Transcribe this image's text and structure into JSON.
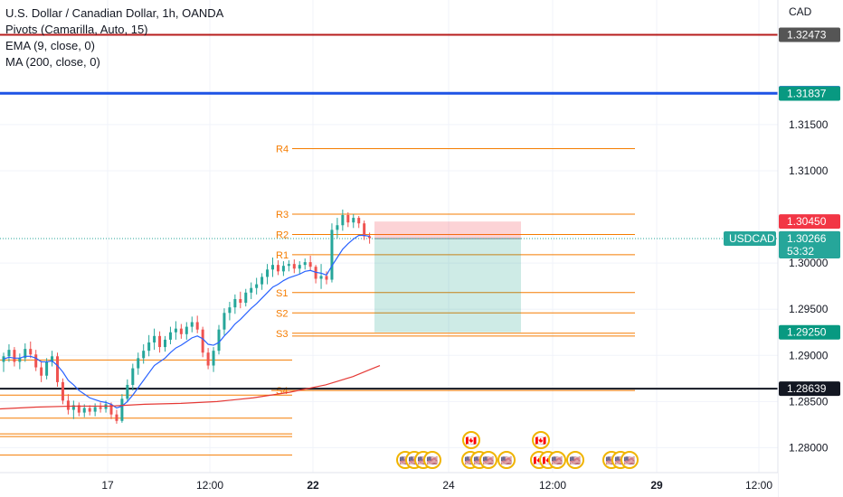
{
  "legend": {
    "title": "U.S. Dollar / Canadian Dollar, 1h, OANDA",
    "line2": "Pivots (Camarilla, Auto, 15)",
    "line3": "EMA (9, close, 0)",
    "line4": "MA (200, close, 0)"
  },
  "chart_data": {
    "type": "candlestick",
    "currency_label": "CAD",
    "symbol_tag": "USDCAD",
    "countdown": "53:32",
    "y_ticks": [
      1.315,
      1.31,
      1.3,
      1.295,
      1.29,
      1.285,
      1.28
    ],
    "y_tick_labels": [
      "1.31500",
      "1.31000",
      "1.30000",
      "1.29500",
      "1.29000",
      "1.28500",
      "1.28000"
    ],
    "y_range": [
      1.2773,
      1.3285
    ],
    "x_ticks": [
      {
        "label": "17",
        "bold": false
      },
      {
        "label": "12:00",
        "bold": false
      },
      {
        "label": "22",
        "bold": true
      },
      {
        "label": "24",
        "bold": false
      },
      {
        "label": "12:00",
        "bold": false
      },
      {
        "label": "29",
        "bold": true
      },
      {
        "label": "12:00",
        "bold": false
      }
    ],
    "current_price": 1.30266,
    "price_badges": [
      {
        "price": 1.32473,
        "label": "1.32473",
        "color": "#555555"
      },
      {
        "price": 1.31841,
        "label": "1.31841",
        "color": "#1e53e5"
      },
      {
        "price": 1.31837,
        "label": "1.31837",
        "color": "#089981"
      },
      {
        "price": 1.3045,
        "label": "1.30450",
        "color": "#f23645"
      },
      {
        "price": 1.30267,
        "label": "1.30267",
        "color": "#555555"
      },
      {
        "price": 1.2925,
        "label": "1.29250",
        "color": "#089981"
      },
      {
        "price": 1.28639,
        "label": "1.28639",
        "color": "#131722"
      }
    ],
    "horizontal_lines": [
      {
        "price": 1.32473,
        "color": "#b71c1c",
        "width": 2
      },
      {
        "price": 1.31839,
        "color": "#1e53e5",
        "width": 3
      },
      {
        "price": 1.28639,
        "color": "#131722",
        "width": 2
      }
    ],
    "pivots": [
      {
        "label": "R4",
        "price": 1.3124
      },
      {
        "label": "R3",
        "price": 1.3053
      },
      {
        "label": "R2",
        "price": 1.3031
      },
      {
        "label": "R1",
        "price": 1.3009
      },
      {
        "label": "S1",
        "price": 1.2968
      },
      {
        "label": "S2",
        "price": 1.2946
      },
      {
        "label": "S3",
        "price": 1.2924
      },
      {
        "label": "S4",
        "price": 1.2862
      }
    ],
    "prev_pivots": [
      1.2895,
      1.2857,
      1.2832,
      1.2815,
      1.2812,
      1.2792
    ],
    "trade": {
      "entry": 1.30266,
      "stop": 1.3045,
      "target": 1.2925
    },
    "candles": [
      [
        1.2893,
        1.2903,
        1.2882,
        1.2899
      ],
      [
        1.2899,
        1.2912,
        1.2893,
        1.2906
      ],
      [
        1.2906,
        1.2909,
        1.2888,
        1.2893
      ],
      [
        1.2893,
        1.2902,
        1.2885,
        1.2897
      ],
      [
        1.2897,
        1.2913,
        1.2893,
        1.2907
      ],
      [
        1.2907,
        1.2915,
        1.2897,
        1.2901
      ],
      [
        1.2901,
        1.2906,
        1.2883,
        1.2887
      ],
      [
        1.2887,
        1.2894,
        1.2871,
        1.2878
      ],
      [
        1.2878,
        1.2897,
        1.2874,
        1.2893
      ],
      [
        1.2893,
        1.2905,
        1.2888,
        1.2899
      ],
      [
        1.2899,
        1.2903,
        1.2866,
        1.2871
      ],
      [
        1.2871,
        1.2875,
        1.2847,
        1.2851
      ],
      [
        1.2851,
        1.2858,
        1.2836,
        1.2841
      ],
      [
        1.2841,
        1.2851,
        1.2831,
        1.2846
      ],
      [
        1.2846,
        1.2849,
        1.2834,
        1.2838
      ],
      [
        1.2838,
        1.2847,
        1.2833,
        1.2843
      ],
      [
        1.2843,
        1.2846,
        1.2835,
        1.2839
      ],
      [
        1.2839,
        1.2848,
        1.2834,
        1.2844
      ],
      [
        1.2844,
        1.2849,
        1.2838,
        1.2842
      ],
      [
        1.2842,
        1.2851,
        1.2838,
        1.2847
      ],
      [
        1.2847,
        1.2849,
        1.2831,
        1.2836
      ],
      [
        1.2836,
        1.2841,
        1.2826,
        1.2829
      ],
      [
        1.2829,
        1.2858,
        1.2827,
        1.2853
      ],
      [
        1.2853,
        1.2874,
        1.2849,
        1.2868
      ],
      [
        1.2868,
        1.2891,
        1.2862,
        1.2886
      ],
      [
        1.2886,
        1.2903,
        1.2879,
        1.2897
      ],
      [
        1.2897,
        1.2912,
        1.2891,
        1.2905
      ],
      [
        1.2905,
        1.2922,
        1.2899,
        1.2914
      ],
      [
        1.2914,
        1.2929,
        1.2906,
        1.2921
      ],
      [
        1.2921,
        1.2926,
        1.2903,
        1.2909
      ],
      [
        1.2909,
        1.2921,
        1.2904,
        1.2917
      ],
      [
        1.2917,
        1.2931,
        1.2912,
        1.2925
      ],
      [
        1.2925,
        1.2937,
        1.2917,
        1.2929
      ],
      [
        1.2929,
        1.2934,
        1.2918,
        1.2923
      ],
      [
        1.2923,
        1.2936,
        1.2917,
        1.2931
      ],
      [
        1.2931,
        1.2942,
        1.2925,
        1.2936
      ],
      [
        1.2936,
        1.2943,
        1.2924,
        1.2928
      ],
      [
        1.2928,
        1.2931,
        1.2898,
        1.2903
      ],
      [
        1.2903,
        1.2908,
        1.2885,
        1.2889
      ],
      [
        1.2889,
        1.2909,
        1.2882,
        1.2905
      ],
      [
        1.2905,
        1.2933,
        1.2901,
        1.2928
      ],
      [
        1.2928,
        1.2951,
        1.2922,
        1.2946
      ],
      [
        1.2946,
        1.2958,
        1.2938,
        1.2952
      ],
      [
        1.2952,
        1.2966,
        1.2945,
        1.2961
      ],
      [
        1.2961,
        1.2969,
        1.2951,
        1.2957
      ],
      [
        1.2957,
        1.2972,
        1.2953,
        1.2968
      ],
      [
        1.2968,
        1.2979,
        1.2961,
        1.2973
      ],
      [
        1.2973,
        1.2984,
        1.2966,
        1.2977
      ],
      [
        1.2977,
        1.2989,
        1.2971,
        1.2985
      ],
      [
        1.2985,
        1.2999,
        1.2977,
        1.2993
      ],
      [
        1.2993,
        1.3006,
        1.2985,
        1.2998
      ],
      [
        1.2998,
        1.3003,
        1.2987,
        1.2991
      ],
      [
        1.2991,
        1.3002,
        1.2986,
        1.2997
      ],
      [
        1.2997,
        1.3003,
        1.2991,
        1.2999
      ],
      [
        1.2999,
        1.3004,
        1.2989,
        1.2994
      ],
      [
        1.2994,
        1.3002,
        1.2988,
        1.2998
      ],
      [
        1.2998,
        1.3005,
        1.2993,
        1.3001
      ],
      [
        1.3001,
        1.3008,
        1.2992,
        1.2996
      ],
      [
        1.2996,
        1.2998,
        1.2978,
        1.2983
      ],
      [
        1.2983,
        1.2999,
        1.2972,
        1.2986
      ],
      [
        1.2986,
        1.2991,
        1.2977,
        1.2982
      ],
      [
        1.2982,
        1.3043,
        1.2979,
        1.3036
      ],
      [
        1.3036,
        1.3049,
        1.3027,
        1.3041
      ],
      [
        1.3041,
        1.3058,
        1.3035,
        1.3052
      ],
      [
        1.3052,
        1.3055,
        1.3039,
        1.3044
      ],
      [
        1.3044,
        1.3053,
        1.3038,
        1.3049
      ],
      [
        1.3049,
        1.3051,
        1.3038,
        1.3043
      ],
      [
        1.3043,
        1.3046,
        1.3025,
        1.3029
      ],
      [
        1.3029,
        1.3033,
        1.3021,
        1.3027
      ]
    ],
    "ema": [
      1.2896,
      1.2898,
      1.2897,
      1.2897,
      1.2899,
      1.2899,
      1.2897,
      1.2893,
      1.2893,
      1.2894,
      1.2889,
      1.2882,
      1.2873,
      1.2868,
      1.2862,
      1.2858,
      1.2854,
      1.2852,
      1.285,
      1.2849,
      1.2847,
      1.2843,
      1.2845,
      1.285,
      1.2857,
      1.2865,
      1.2873,
      1.2881,
      1.2889,
      1.2893,
      1.2897,
      1.2903,
      1.2908,
      1.2911,
      1.2915,
      1.2919,
      1.2921,
      1.2918,
      1.2912,
      1.2911,
      1.2914,
      1.2921,
      1.2927,
      1.2934,
      1.2939,
      1.2945,
      1.2951,
      1.2956,
      1.2962,
      1.2968,
      1.2974,
      1.2977,
      1.2981,
      1.2984,
      1.2986,
      1.2988,
      1.2991,
      1.2992,
      1.299,
      1.2989,
      1.2987,
      1.2997,
      1.3006,
      1.3015,
      1.3021,
      1.3026,
      1.303,
      1.303,
      1.3029
    ],
    "ma200": [
      [
        0,
        1.2842
      ],
      [
        40,
        1.2844
      ],
      [
        80,
        1.2845
      ],
      [
        120,
        1.2845
      ],
      [
        160,
        1.2847
      ],
      [
        200,
        1.2848
      ],
      [
        240,
        1.285
      ],
      [
        280,
        1.2854
      ],
      [
        320,
        1.286
      ],
      [
        360,
        1.2868
      ],
      [
        390,
        1.2877
      ],
      [
        410,
        1.2885
      ],
      [
        420,
        1.2889
      ]
    ],
    "events_row1": [
      "🇨🇦",
      "🇨🇦"
    ],
    "events_row2": [
      "🇺🇸",
      "🇺🇸",
      "🇨🇦",
      "🇺🇸",
      "🇺🇸"
    ]
  }
}
